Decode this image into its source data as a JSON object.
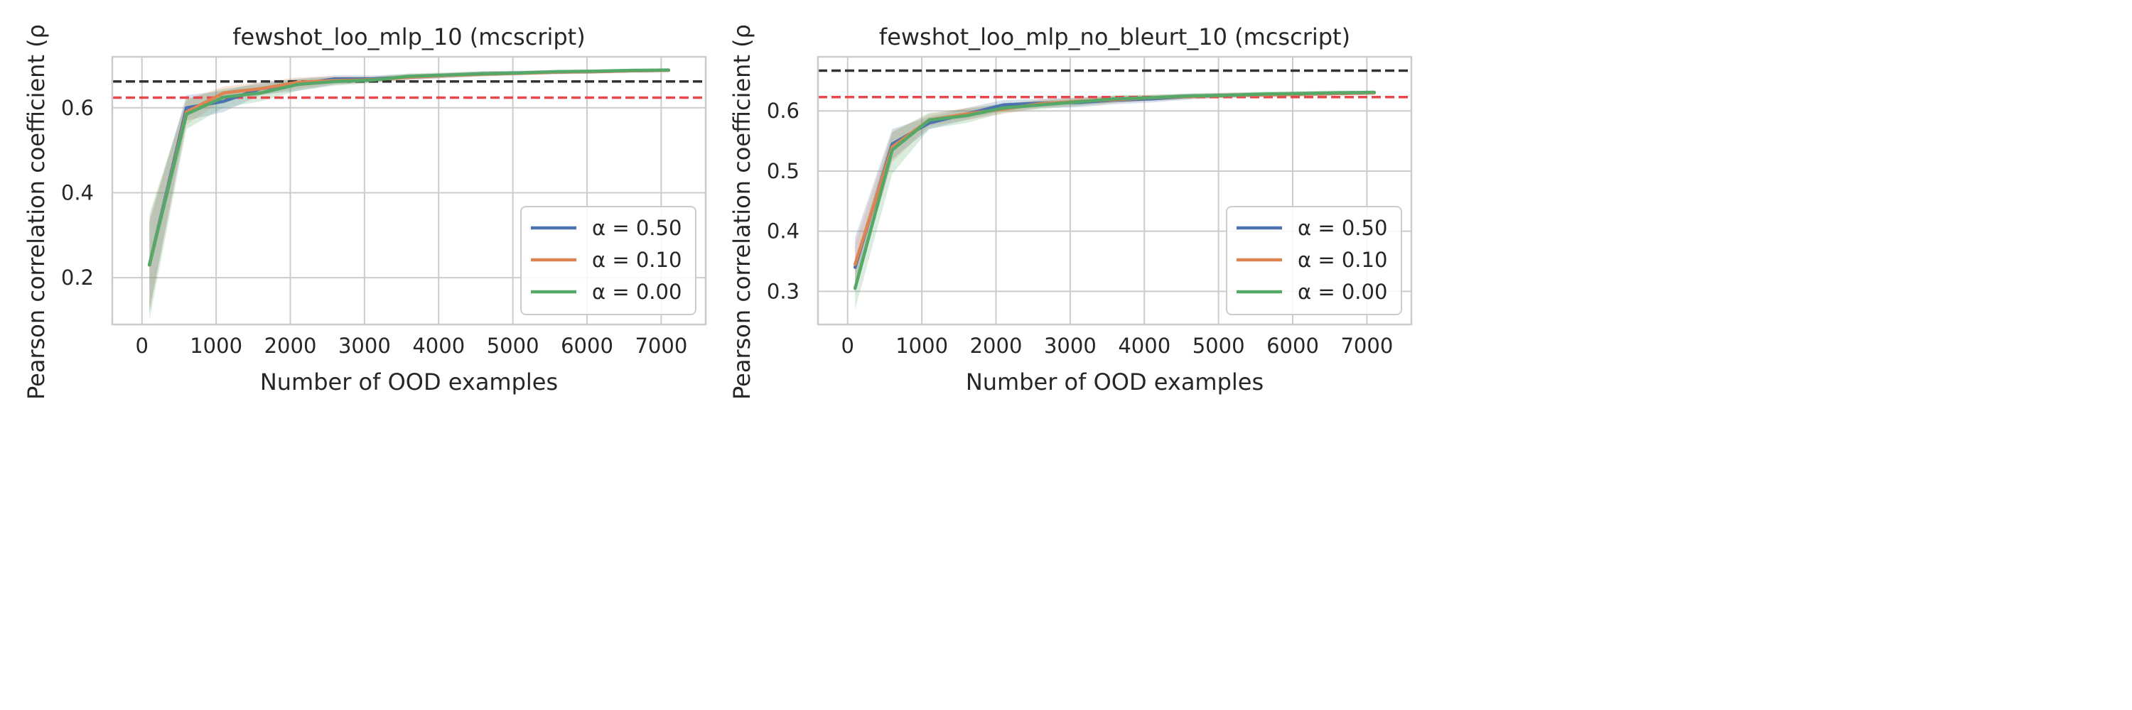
{
  "chart_data": [
    {
      "type": "line",
      "title": "fewshot_loo_mlp_10 (mcscript)",
      "xlabel": "Number of OOD examples",
      "ylabel": "Pearson correlation coefficient (ρ",
      "xlim": [
        -400,
        7600
      ],
      "ylim": [
        0.09,
        0.72
      ],
      "xticks": [
        0,
        1000,
        2000,
        3000,
        4000,
        5000,
        6000,
        7000
      ],
      "yticks": [
        0.2,
        0.4,
        0.6
      ],
      "ytick_labels": [
        "0.2",
        "0.4",
        "0.6"
      ],
      "grid": true,
      "legend_position": "lower-right",
      "reference_lines": [
        {
          "color": "#333333",
          "y": 0.662
        },
        {
          "color": "#e8474b",
          "y": 0.624
        }
      ],
      "x": [
        100,
        600,
        1100,
        1600,
        2100,
        2600,
        3100,
        3600,
        4100,
        4600,
        5100,
        5600,
        6100,
        6600,
        7100
      ],
      "series": [
        {
          "name": "α = 0.50",
          "color": "#4c72b0",
          "values": [
            0.23,
            0.6,
            0.615,
            0.645,
            0.655,
            0.668,
            0.668,
            0.672,
            0.676,
            0.68,
            0.682,
            0.684,
            0.685,
            0.687,
            0.688
          ],
          "lower": [
            0.12,
            0.57,
            0.59,
            0.63,
            0.64,
            0.655,
            0.66,
            0.665,
            0.67,
            0.674,
            0.677,
            0.679,
            0.68,
            0.683,
            0.685
          ],
          "upper": [
            0.33,
            0.63,
            0.64,
            0.66,
            0.668,
            0.676,
            0.676,
            0.679,
            0.682,
            0.686,
            0.687,
            0.689,
            0.69,
            0.691,
            0.691
          ]
        },
        {
          "name": "α = 0.10",
          "color": "#dd8452",
          "values": [
            0.23,
            0.59,
            0.635,
            0.645,
            0.66,
            0.664,
            0.666,
            0.672,
            0.676,
            0.679,
            0.681,
            0.684,
            0.685,
            0.687,
            0.688
          ],
          "lower": [
            0.12,
            0.56,
            0.62,
            0.63,
            0.645,
            0.655,
            0.66,
            0.666,
            0.67,
            0.674,
            0.677,
            0.679,
            0.681,
            0.683,
            0.685
          ],
          "upper": [
            0.34,
            0.62,
            0.65,
            0.66,
            0.672,
            0.674,
            0.673,
            0.679,
            0.682,
            0.685,
            0.686,
            0.688,
            0.689,
            0.691,
            0.691
          ]
        },
        {
          "name": "α = 0.00",
          "color": "#55a868",
          "values": [
            0.23,
            0.585,
            0.625,
            0.635,
            0.655,
            0.662,
            0.665,
            0.674,
            0.677,
            0.68,
            0.682,
            0.685,
            0.686,
            0.688,
            0.689
          ],
          "lower": [
            0.1,
            0.55,
            0.6,
            0.615,
            0.64,
            0.652,
            0.658,
            0.668,
            0.672,
            0.675,
            0.678,
            0.681,
            0.682,
            0.684,
            0.686
          ],
          "upper": [
            0.35,
            0.62,
            0.645,
            0.655,
            0.668,
            0.672,
            0.673,
            0.681,
            0.683,
            0.686,
            0.687,
            0.689,
            0.69,
            0.692,
            0.692
          ]
        }
      ]
    },
    {
      "type": "line",
      "title": "fewshot_loo_mlp_no_bleurt_10 (mcscript)",
      "xlabel": "Number of OOD examples",
      "ylabel": "Pearson correlation coefficient (ρ",
      "xlim": [
        -400,
        7600
      ],
      "ylim": [
        0.245,
        0.69
      ],
      "xticks": [
        0,
        1000,
        2000,
        3000,
        4000,
        5000,
        6000,
        7000
      ],
      "yticks": [
        0.3,
        0.4,
        0.5,
        0.6
      ],
      "ytick_labels": [
        "0.3",
        "0.4",
        "0.5",
        "0.6"
      ],
      "grid": true,
      "legend_position": "lower-right",
      "reference_lines": [
        {
          "color": "#333333",
          "y": 0.667
        },
        {
          "color": "#e8474b",
          "y": 0.623
        }
      ],
      "x": [
        100,
        600,
        1100,
        1600,
        2100,
        2600,
        3100,
        3600,
        4100,
        4600,
        5100,
        5600,
        6100,
        6600,
        7100
      ],
      "series": [
        {
          "name": "α = 0.50",
          "color": "#4c72b0",
          "values": [
            0.34,
            0.545,
            0.58,
            0.595,
            0.61,
            0.613,
            0.614,
            0.618,
            0.62,
            0.624,
            0.626,
            0.627,
            0.628,
            0.629,
            0.63
          ],
          "lower": [
            0.3,
            0.52,
            0.57,
            0.585,
            0.6,
            0.605,
            0.606,
            0.611,
            0.614,
            0.619,
            0.622,
            0.623,
            0.624,
            0.626,
            0.627
          ],
          "upper": [
            0.39,
            0.57,
            0.59,
            0.605,
            0.618,
            0.62,
            0.622,
            0.625,
            0.626,
            0.629,
            0.63,
            0.631,
            0.632,
            0.633,
            0.633
          ]
        },
        {
          "name": "α = 0.10",
          "color": "#dd8452",
          "values": [
            0.345,
            0.54,
            0.585,
            0.595,
            0.603,
            0.612,
            0.616,
            0.619,
            0.622,
            0.624,
            0.626,
            0.627,
            0.628,
            0.629,
            0.63
          ],
          "lower": [
            0.31,
            0.515,
            0.575,
            0.585,
            0.595,
            0.605,
            0.609,
            0.613,
            0.617,
            0.62,
            0.622,
            0.623,
            0.624,
            0.626,
            0.627
          ],
          "upper": [
            0.38,
            0.565,
            0.595,
            0.605,
            0.611,
            0.619,
            0.622,
            0.625,
            0.627,
            0.628,
            0.63,
            0.631,
            0.632,
            0.633,
            0.633
          ]
        },
        {
          "name": "α = 0.00",
          "color": "#55a868",
          "values": [
            0.305,
            0.535,
            0.585,
            0.592,
            0.605,
            0.61,
            0.615,
            0.62,
            0.622,
            0.625,
            0.626,
            0.628,
            0.629,
            0.63,
            0.631
          ],
          "lower": [
            0.27,
            0.495,
            0.57,
            0.58,
            0.597,
            0.603,
            0.608,
            0.614,
            0.617,
            0.621,
            0.622,
            0.624,
            0.625,
            0.627,
            0.628
          ],
          "upper": [
            0.35,
            0.565,
            0.597,
            0.603,
            0.613,
            0.617,
            0.621,
            0.626,
            0.627,
            0.629,
            0.63,
            0.632,
            0.633,
            0.634,
            0.634
          ]
        }
      ]
    }
  ]
}
